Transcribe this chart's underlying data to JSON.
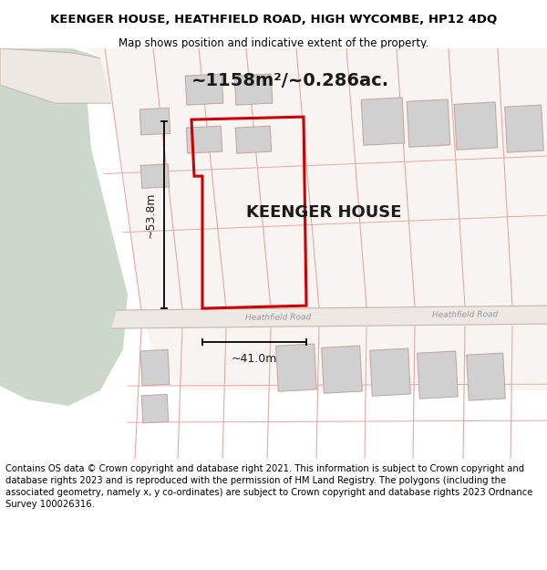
{
  "title": "KEENGER HOUSE, HEATHFIELD ROAD, HIGH WYCOMBE, HP12 4DQ",
  "subtitle": "Map shows position and indicative extent of the property.",
  "footer": "Contains OS data © Crown copyright and database right 2021. This information is subject to Crown copyright and database rights 2023 and is reproduced with the permission of HM Land Registry. The polygons (including the associated geometry, namely x, y co-ordinates) are subject to Crown copyright and database rights 2023 Ordnance Survey 100026316.",
  "bg_green_color": "#cdd8cc",
  "plot_bg_color": "#f7f4f2",
  "road_fill_color": "#ede8e4",
  "road_line_color": "#c8b4aa",
  "lot_line_color": "#e8a8a2",
  "property_border_color": "#cc0000",
  "building_fill_color": "#d0d0d0",
  "building_line_color": "#c8a8a4",
  "area_text": "~1158m²/~0.286ac.",
  "width_text": "~41.0m",
  "height_text": "~53.8m",
  "road_label_left": "Heathfield Road",
  "road_label_right": "Heathfield Road",
  "property_label": "KEENGER HOUSE",
  "title_fontsize": 9.5,
  "subtitle_fontsize": 8.5,
  "footer_fontsize": 7.2,
  "area_fontsize": 14,
  "prop_label_fontsize": 13
}
